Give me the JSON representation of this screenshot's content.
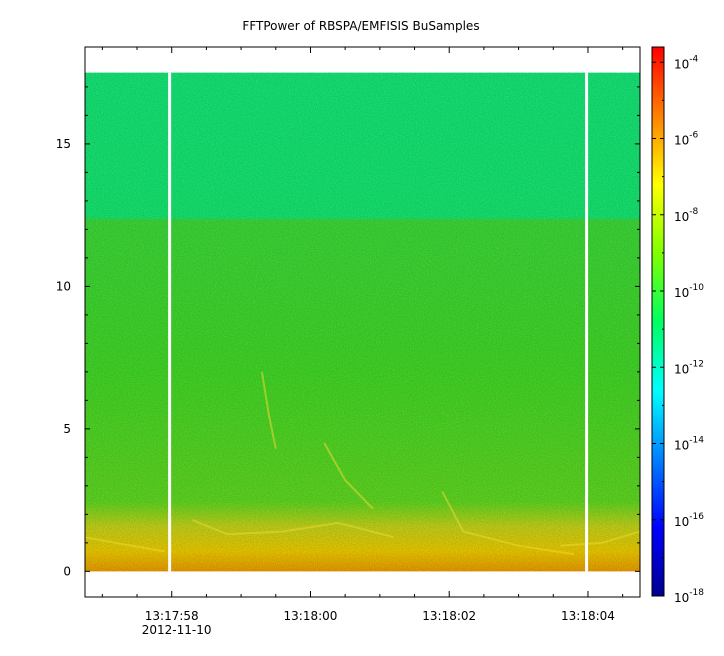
{
  "chart_data": {
    "type": "heatmap",
    "title": "FFTPower of RBSPA/EMFISIS  BuSamples",
    "xlabel": "",
    "ylabel": "",
    "x_ticks": [
      {
        "label": "13:17:58",
        "sublabel": "2012-11-10",
        "t": 58
      },
      {
        "label": "13:18:00",
        "sublabel": "",
        "t": 60
      },
      {
        "label": "13:18:02",
        "sublabel": "",
        "t": 62
      },
      {
        "label": "13:18:04",
        "sublabel": "",
        "t": 64
      }
    ],
    "xlim_seconds": [
      56.75,
      64.75
    ],
    "y_ticks": [
      0,
      5,
      10,
      15
    ],
    "ylim": [
      -0.9,
      18.4
    ],
    "data_ylim": [
      0,
      17.5
    ],
    "gaps_seconds": [
      57.97,
      63.98
    ],
    "colorbar": {
      "scale": "log",
      "range_exponent": [
        -18,
        -3.6
      ],
      "tick_base": "10",
      "tick_exponents": [
        "-4",
        "-6",
        "-8",
        "-10",
        "-12",
        "-14",
        "-16",
        "-18"
      ]
    },
    "bands": [
      {
        "y_range": [
          0,
          0.5
        ],
        "level": "1e-7"
      },
      {
        "y_range": [
          0.5,
          2
        ],
        "level": "1e-9"
      },
      {
        "y_range": [
          2,
          12.3
        ],
        "level": "1e-10"
      },
      {
        "y_range": [
          12.3,
          17.5
        ],
        "level": "1e-11"
      }
    ],
    "colors": {
      "low_band": "#f2d200",
      "mid_band": "#44dd22",
      "high_band": "#12ee78",
      "gap": "#ffffff"
    }
  }
}
